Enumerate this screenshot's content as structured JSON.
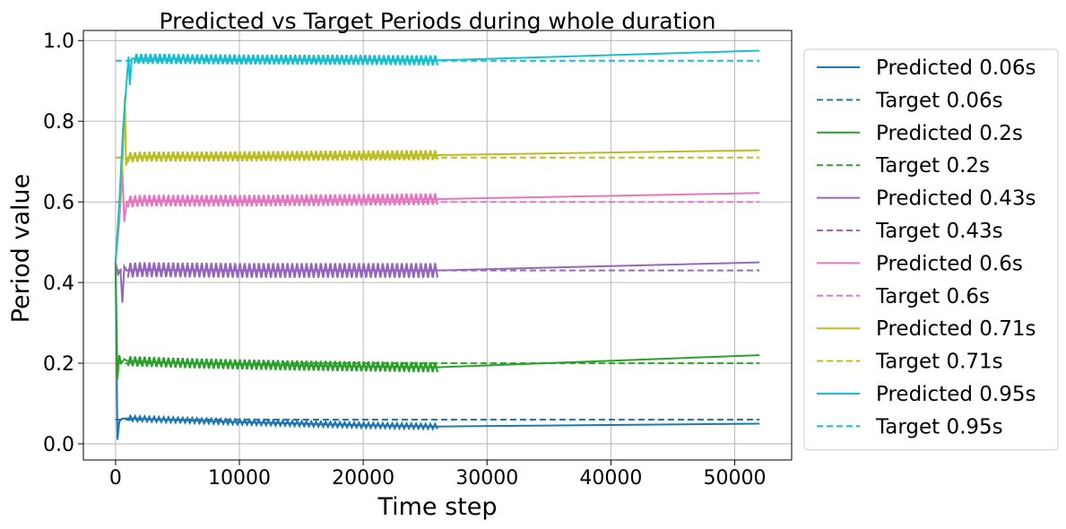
{
  "chart_data": {
    "type": "line",
    "title": "Predicted vs Target Periods during whole duration",
    "xlabel": "Time step",
    "ylabel": "Period value",
    "xlim": [
      -2600,
      54600
    ],
    "ylim": [
      -0.04,
      1.025
    ],
    "xticks": [
      0,
      10000,
      20000,
      30000,
      40000,
      50000
    ],
    "xtick_labels": [
      "0",
      "10000",
      "20000",
      "30000",
      "40000",
      "50000"
    ],
    "yticks": [
      0.0,
      0.2,
      0.4,
      0.6,
      0.8,
      1.0
    ],
    "ytick_labels": [
      "0.0",
      "0.2",
      "0.4",
      "0.6",
      "0.8",
      "1.0"
    ],
    "grid": true,
    "legend_position": "outside-right",
    "series": [
      {
        "name": "Predicted 0.06s",
        "color": "#1f77b4",
        "style": "solid",
        "x": [
          0,
          150,
          300,
          500,
          800,
          1200,
          3000,
          6000,
          10000,
          15000,
          20000,
          26000,
          52000
        ],
        "y": [
          0.45,
          0.01,
          0.055,
          0.062,
          0.063,
          0.063,
          0.061,
          0.058,
          0.054,
          0.05,
          0.046,
          0.043,
          0.05
        ]
      },
      {
        "name": "Target 0.06s",
        "color": "#1f77b4",
        "style": "dashed",
        "x": [
          0,
          52000
        ],
        "y": [
          0.06,
          0.06
        ]
      },
      {
        "name": "Predicted 0.2s",
        "color": "#2ca02c",
        "style": "solid",
        "x": [
          0,
          150,
          300,
          450,
          700,
          1000,
          3000,
          6000,
          10000,
          15000,
          20000,
          26000,
          52000
        ],
        "y": [
          0.45,
          0.16,
          0.22,
          0.2,
          0.21,
          0.205,
          0.203,
          0.2,
          0.197,
          0.194,
          0.192,
          0.19,
          0.22
        ]
      },
      {
        "name": "Target 0.2s",
        "color": "#2ca02c",
        "style": "dashed",
        "x": [
          0,
          52000
        ],
        "y": [
          0.2,
          0.2
        ]
      },
      {
        "name": "Predicted 0.43s",
        "color": "#9467bd",
        "style": "solid",
        "x": [
          0,
          200,
          400,
          550,
          700,
          900,
          2000,
          10000,
          20000,
          26000,
          52000
        ],
        "y": [
          0.45,
          0.42,
          0.43,
          0.35,
          0.44,
          0.43,
          0.432,
          0.43,
          0.43,
          0.43,
          0.45
        ]
      },
      {
        "name": "Target 0.43s",
        "color": "#9467bd",
        "style": "dashed",
        "x": [
          0,
          52000
        ],
        "y": [
          0.43,
          0.43
        ]
      },
      {
        "name": "Predicted 0.6s",
        "color": "#e377c2",
        "style": "solid",
        "x": [
          0,
          300,
          550,
          700,
          900,
          2000,
          10000,
          20000,
          26000,
          52000
        ],
        "y": [
          0.45,
          0.55,
          0.68,
          0.55,
          0.6,
          0.603,
          0.603,
          0.605,
          0.607,
          0.622
        ]
      },
      {
        "name": "Target 0.6s",
        "color": "#e377c2",
        "style": "dashed",
        "x": [
          0,
          52000
        ],
        "y": [
          0.6,
          0.6
        ]
      },
      {
        "name": "Predicted 0.71s",
        "color": "#bcbd22",
        "style": "solid",
        "x": [
          0,
          300,
          600,
          750,
          850,
          1000,
          2000,
          10000,
          20000,
          26000,
          52000
        ],
        "y": [
          0.45,
          0.58,
          0.72,
          0.86,
          0.69,
          0.71,
          0.712,
          0.713,
          0.715,
          0.716,
          0.728
        ]
      },
      {
        "name": "Target 0.71s",
        "color": "#bcbd22",
        "style": "dashed",
        "x": [
          0,
          52000
        ],
        "y": [
          0.71,
          0.71
        ]
      },
      {
        "name": "Predicted 0.95s",
        "color": "#17becf",
        "style": "solid",
        "x": [
          0,
          300,
          600,
          900,
          1050,
          1150,
          1300,
          2000,
          10000,
          20000,
          26000,
          52000
        ],
        "y": [
          0.45,
          0.6,
          0.78,
          0.9,
          0.96,
          0.89,
          0.955,
          0.955,
          0.953,
          0.952,
          0.951,
          0.975
        ]
      },
      {
        "name": "Target 0.95s",
        "color": "#17becf",
        "style": "dashed",
        "x": [
          0,
          52000
        ],
        "y": [
          0.95,
          0.95
        ]
      }
    ],
    "oscillation_bands": [
      {
        "series": "Predicted 0.06s",
        "x_start": 1000,
        "x_end": 26000,
        "band": 0.006
      },
      {
        "series": "Predicted 0.2s",
        "x_start": 1000,
        "x_end": 26000,
        "band": 0.012
      },
      {
        "series": "Predicted 0.43s",
        "x_start": 1000,
        "x_end": 26000,
        "band": 0.018
      },
      {
        "series": "Predicted 0.6s",
        "x_start": 1000,
        "x_end": 26000,
        "band": 0.014
      },
      {
        "series": "Predicted 0.71s",
        "x_start": 1000,
        "x_end": 26000,
        "band": 0.012
      },
      {
        "series": "Predicted 0.95s",
        "x_start": 1500,
        "x_end": 26000,
        "band": 0.012
      }
    ]
  }
}
